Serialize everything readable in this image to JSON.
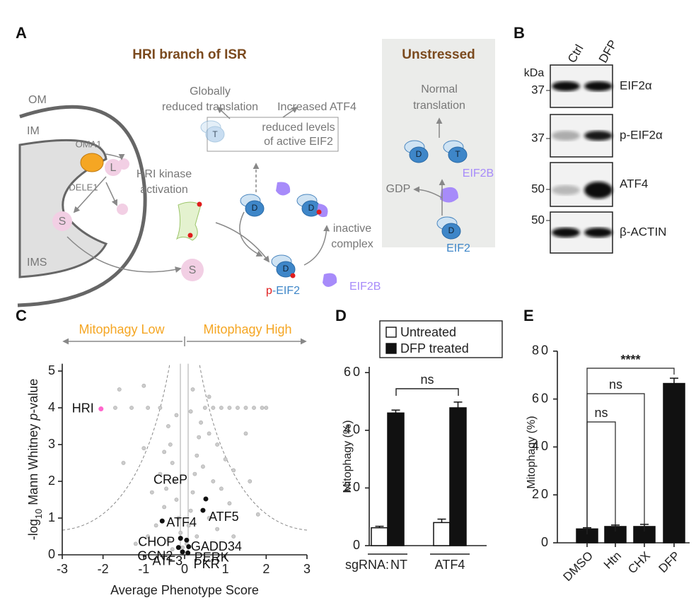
{
  "panel_labels": [
    "A",
    "B",
    "C",
    "D",
    "E"
  ],
  "diagram": {
    "title": "HRI branch of ISR",
    "unstressed_title": "Unstressed",
    "globally": [
      "Globally",
      "reduced translation"
    ],
    "increased": "Increased ATF4",
    "reduced": [
      "reduced levels",
      "of active EIF2"
    ],
    "kinase": [
      "HRI kinase",
      "activation"
    ],
    "inactive": [
      "inactive",
      "complex"
    ],
    "peif2": [
      "p",
      "-EIF2"
    ],
    "eif2b": "EIF2B",
    "normal": [
      "Normal",
      "translation"
    ],
    "eif2b_unstressed": "EIF2B",
    "gdp": "GDP",
    "eif2": "EIF2",
    "membranes": [
      "OM",
      "IM",
      "IMS"
    ],
    "oma1": "OMA1",
    "dele1": "DELE1",
    "long_form": "L",
    "short_form": [
      "S",
      "S"
    ],
    "ribosome_states": [
      "T",
      "D",
      "D",
      "D",
      "D",
      "T",
      "T",
      "D"
    ]
  },
  "blot": {
    "lanes": [
      "Ctrl",
      "DFP"
    ],
    "unit": "kDa",
    "markers": [
      37,
      37,
      50,
      50
    ],
    "proteins": [
      "EIF2α",
      "p-EIF2α",
      "ATF4",
      "β-ACTIN"
    ]
  },
  "chart_data": [
    {
      "type": "scatter",
      "x_label": "Average Phenotype Score",
      "y_label_parts": [
        "-log",
        "10",
        " Mann Whitney ",
        "p",
        "-value"
      ],
      "annotations": [
        "Mitophagy Low",
        "Mitophagy High"
      ],
      "xlim": [
        -3,
        3
      ],
      "xticks": [
        -3,
        -2,
        -1,
        0,
        1,
        2,
        3
      ],
      "ylim": [
        0,
        5.2
      ],
      "yticks": [
        0,
        1,
        2,
        3,
        4,
        5
      ],
      "series": [
        {
          "color": "#cccccc",
          "x": [
            -0.05,
            0.05,
            -0.1,
            0.1,
            -0.15,
            0.15,
            -0.2,
            0.2,
            -0.25,
            0.25,
            -0.3,
            0.3,
            -0.35,
            0.35,
            -0.4,
            0.4,
            0.5,
            0.7,
            0.9,
            1.1,
            1.3,
            1.5,
            1.7,
            1.9,
            -0.6,
            -0.9,
            -1.3,
            -1.7,
            0.6,
            0.8,
            1.0,
            1.2,
            0.7,
            0.9,
            1.1,
            0.6,
            0.8,
            1.2,
            -0.5,
            -0.6,
            -0.8,
            -0.5,
            -0.7,
            -0.9,
            -1.2,
            -0.4,
            0.3,
            -0.3,
            0.45,
            -0.45,
            1.5,
            1.6,
            -1.0,
            -1.5,
            2.0,
            1.8,
            -1.6,
            -1.0,
            0.2,
            0.6,
            -0.2,
            0.15
          ],
          "y": [
            0.2,
            0.3,
            0.6,
            0.8,
            1.0,
            1.2,
            1.5,
            1.7,
            2.0,
            2.2,
            2.5,
            2.7,
            3.0,
            3.2,
            3.5,
            3.6,
            4.0,
            4.0,
            4.0,
            4.0,
            4.0,
            4.0,
            4.0,
            4.0,
            4.0,
            4.0,
            4.0,
            4.0,
            3.3,
            3.0,
            2.6,
            2.3,
            2.0,
            1.8,
            1.4,
            1.0,
            0.7,
            0.5,
            2.8,
            2.2,
            1.7,
            1.3,
            0.8,
            0.5,
            0.3,
            0.4,
            0.5,
            0.15,
            2.4,
            1.8,
            3.3,
            2.0,
            2.9,
            2.5,
            4.0,
            1.1,
            4.5,
            4.6,
            4.5,
            4.3,
            3.8,
            3.9
          ]
        },
        {
          "color": "#ff66cc",
          "x": [
            -2.05
          ],
          "y": [
            3.97
          ],
          "labels": [
            "HRI"
          ]
        },
        {
          "color": "#111111",
          "x": [
            0.52,
            0.45,
            -0.55,
            -0.1,
            0.05,
            -0.15,
            0.1,
            -0.05,
            0.08
          ],
          "y": [
            1.52,
            1.21,
            0.92,
            0.45,
            0.4,
            0.2,
            0.22,
            0.08,
            0.05
          ],
          "labels": [
            "CReP",
            "ATF5",
            "ATF4",
            "CHOP",
            "GADD34",
            "GCN2",
            "PERK",
            "ATF3",
            "PKR"
          ]
        }
      ]
    },
    {
      "type": "bar",
      "y_label": "Mitophagy (%)",
      "category_prefix": "sgRNA:",
      "categories": [
        "NT",
        "ATF4"
      ],
      "series": [
        {
          "name": "Untreated",
          "color": "#ffffff",
          "values": [
            6.2,
            8.0
          ],
          "errors": [
            0.5,
            1.2
          ]
        },
        {
          "name": "DFP treated",
          "color": "#111111",
          "values": [
            46,
            47.8
          ],
          "errors": [
            1,
            2
          ]
        }
      ],
      "ylim": [
        0,
        62
      ],
      "yticks": [
        0,
        20,
        40,
        60
      ],
      "significance": [
        "ns"
      ]
    },
    {
      "type": "bar",
      "y_label": "Mitophagy (%)",
      "categories": [
        "DMSO",
        "Htn",
        "CHX",
        "DFP"
      ],
      "values": [
        5.8,
        6.8,
        6.8,
        66.5
      ],
      "errors": [
        0.5,
        0.6,
        0.9,
        2.2
      ],
      "color": "#111111",
      "ylim": [
        0,
        80
      ],
      "yticks": [
        0,
        20,
        40,
        60,
        80
      ],
      "significance": [
        "ns",
        "ns",
        "****"
      ]
    }
  ]
}
